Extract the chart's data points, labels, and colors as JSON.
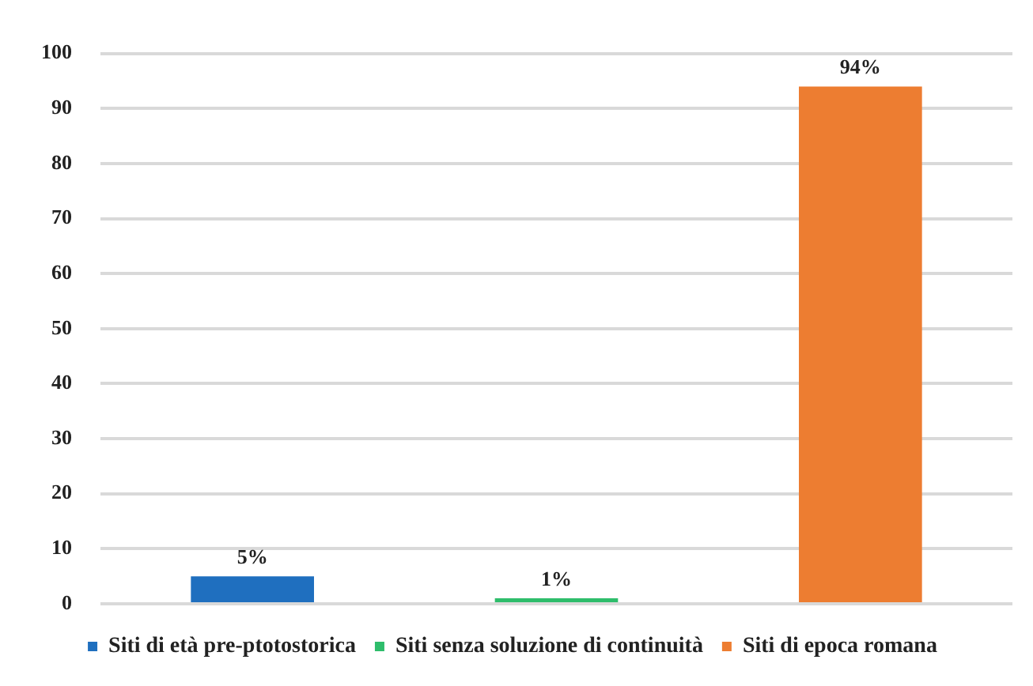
{
  "chart_data": {
    "type": "bar",
    "categories": [
      null,
      null,
      null
    ],
    "series": [
      {
        "name": "Siti di età pre-ptotostorica",
        "color": "#1f6fbf",
        "values": [
          5,
          null,
          null
        ],
        "value_labels": [
          "5%",
          null,
          null
        ]
      },
      {
        "name": "Siti senza soluzione di continuità",
        "color": "#2ebd6b",
        "values": [
          null,
          1,
          null
        ],
        "value_labels": [
          null,
          "1%",
          null
        ]
      },
      {
        "name": "Siti di epoca romana",
        "color": "#ed7d31",
        "values": [
          null,
          null,
          94
        ],
        "value_labels": [
          null,
          null,
          "94%"
        ]
      }
    ],
    "ylim": [
      0,
      100
    ],
    "yticks": [
      0,
      10,
      20,
      30,
      40,
      50,
      60,
      70,
      80,
      90,
      100
    ],
    "grid": "y",
    "legend": "bottom"
  }
}
